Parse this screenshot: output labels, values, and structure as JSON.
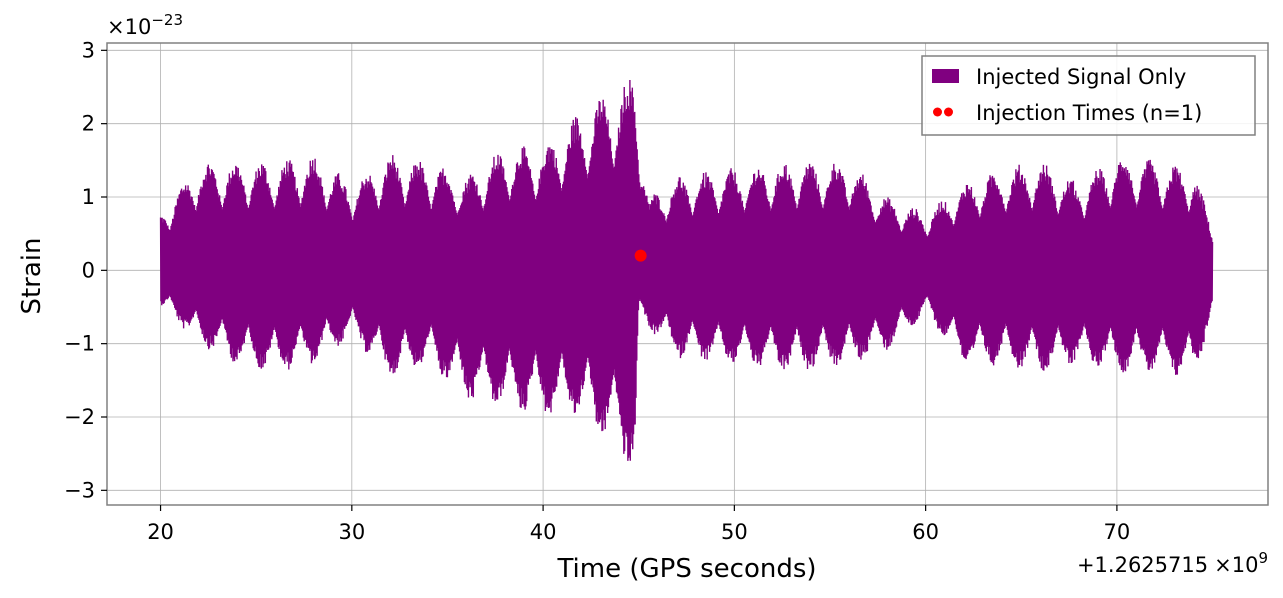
{
  "chart_data": {
    "type": "line",
    "title": "",
    "xlabel": "Time (GPS seconds)",
    "ylabel": "Strain",
    "xlim": [
      17.2,
      77.9
    ],
    "ylim": [
      -3.2,
      3.1
    ],
    "xticks": [
      20,
      30,
      40,
      50,
      60,
      70
    ],
    "xtick_labels": [
      "20",
      "30",
      "40",
      "50",
      "60",
      "70"
    ],
    "yticks": [
      -3,
      -2,
      -1,
      0,
      1,
      2,
      3
    ],
    "ytick_labels": [
      "−3",
      "−2",
      "−1",
      "0",
      "1",
      "2",
      "3"
    ],
    "y_multiplier_label": "×10",
    "y_multiplier_exponent": "−23",
    "x_offset_label": "+1.2625715",
    "x_offset_times": "×10",
    "x_offset_exponent": "9",
    "grid": true,
    "legend_position": "top-right",
    "series": [
      {
        "name": "Injected Signal Only",
        "color": "#800080",
        "x_range": [
          20,
          75
        ],
        "envelope": {
          "x": [
            20,
            22,
            24,
            26,
            28,
            30,
            32,
            34,
            36,
            38,
            40,
            42,
            43,
            44,
            44.8,
            45,
            45.5,
            47,
            50,
            53,
            56,
            58,
            60,
            62,
            64,
            66,
            68,
            70,
            72,
            74,
            75
          ],
          "upper": [
            0.8,
            1.5,
            1.5,
            1.5,
            1.6,
            1.2,
            1.6,
            1.5,
            1.3,
            1.7,
            1.7,
            2.2,
            2.4,
            2.5,
            2.8,
            2.2,
            1.0,
            1.3,
            1.4,
            1.5,
            1.5,
            1.0,
            0.8,
            1.2,
            1.4,
            1.5,
            1.2,
            1.6,
            1.5,
            1.4,
            0.6
          ],
          "lower": [
            -0.5,
            -1.0,
            -1.3,
            -1.4,
            -1.3,
            -0.9,
            -1.5,
            -1.3,
            -1.8,
            -1.9,
            -2.0,
            -2.0,
            -2.3,
            -2.5,
            -2.9,
            -0.7,
            -0.8,
            -1.2,
            -1.3,
            -1.4,
            -1.3,
            -1.1,
            -0.6,
            -1.3,
            -1.3,
            -1.4,
            -1.3,
            -1.4,
            -1.4,
            -1.5,
            -0.6
          ]
        }
      },
      {
        "name": "Injection Times (n=1)",
        "type": "scatter",
        "color": "#ff0000",
        "points": [
          {
            "x": 45.1,
            "y": 0.2
          }
        ]
      }
    ]
  }
}
